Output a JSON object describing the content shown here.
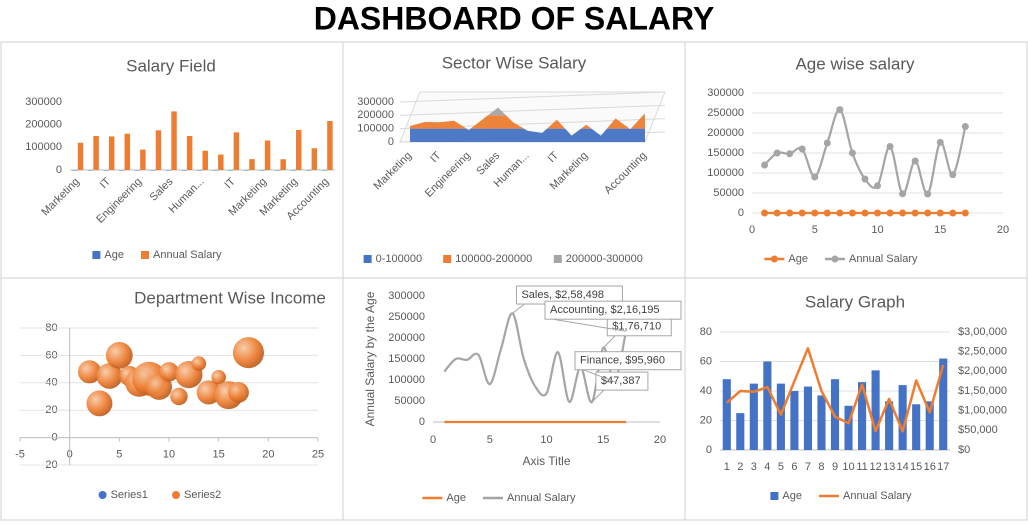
{
  "title": "DASHBOARD OF SALARY",
  "chart_data": [
    {
      "type": "bar",
      "title": "Salary Field",
      "categories": [
        "Marketing",
        null,
        "IT",
        null,
        "Engineering",
        null,
        "Sales",
        null,
        "Human...",
        null,
        "IT",
        null,
        "Marketing",
        null,
        "Marketing",
        null,
        "Accounting"
      ],
      "series": [
        {
          "name": "Age",
          "color": "#4472c4",
          "values": [
            48,
            25,
            45,
            60,
            45,
            40,
            43,
            37,
            48,
            30,
            46,
            54,
            33,
            44,
            31,
            33,
            62
          ]
        },
        {
          "name": "Annual Salary",
          "color": "#ed7d31",
          "values": [
            120000,
            150000,
            148000,
            160000,
            90000,
            175000,
            258498,
            150000,
            85000,
            68000,
            166200,
            48000,
            130000,
            47387,
            176710,
            95960,
            216195
          ]
        }
      ],
      "ylim": [
        0,
        300000
      ],
      "yticks": [
        0,
        100000,
        200000,
        300000
      ],
      "legend": "bottom"
    },
    {
      "type": "surface",
      "title": "Sector Wise Salary",
      "categories": [
        "Marketing",
        null,
        "IT",
        null,
        "Engineering",
        null,
        "Sales",
        null,
        "Human...",
        null,
        "IT",
        null,
        "Marketing",
        null,
        null,
        null,
        "Accounting"
      ],
      "values": [
        120000,
        150000,
        148000,
        160000,
        90000,
        175000,
        258498,
        150000,
        85000,
        68000,
        166200,
        48000,
        130000,
        47387,
        176710,
        95960,
        216195
      ],
      "ylim": [
        0,
        300000
      ],
      "yticks": [
        0,
        100000,
        200000,
        300000
      ],
      "bands": [
        {
          "name": "0-100000",
          "color": "#4472c4"
        },
        {
          "name": "100000-200000",
          "color": "#ed7d31"
        },
        {
          "name": "200000-300000",
          "color": "#a5a5a5"
        }
      ],
      "legend": "bottom"
    },
    {
      "type": "scatter",
      "title": "Age wise salary",
      "x": [
        1,
        2,
        3,
        4,
        5,
        6,
        7,
        8,
        9,
        10,
        11,
        12,
        13,
        14,
        15,
        16,
        17
      ],
      "series": [
        {
          "name": "Age",
          "color": "#ed7d31",
          "values": [
            48,
            25,
            45,
            60,
            45,
            40,
            43,
            37,
            48,
            30,
            46,
            54,
            33,
            44,
            31,
            33,
            62
          ]
        },
        {
          "name": "Annual Salary",
          "color": "#a5a5a5",
          "values": [
            120000,
            150000,
            148000,
            160000,
            90000,
            175000,
            258498,
            150000,
            85000,
            68000,
            166200,
            48000,
            130000,
            47387,
            176710,
            95960,
            216195
          ]
        }
      ],
      "xlim": [
        0,
        20
      ],
      "xticks": [
        0,
        5,
        10,
        15,
        20
      ],
      "ylim": [
        0,
        300000
      ],
      "yticks": [
        0,
        50000,
        100000,
        150000,
        200000,
        250000,
        300000
      ],
      "smooth": true,
      "grid": true,
      "legend": "bottom"
    },
    {
      "type": "bubble",
      "title": "Department Wise Income",
      "series": [
        {
          "name": "Series1",
          "color": "#4472c4"
        },
        {
          "name": "Series2",
          "color": "#ed7d31",
          "x": [
            2,
            3,
            4,
            5,
            6,
            7,
            8,
            9,
            10,
            11,
            12,
            13,
            14,
            15,
            16,
            17,
            18
          ],
          "values": [
            48,
            25,
            45,
            60,
            45,
            40,
            43,
            37,
            48,
            30,
            46,
            54,
            33,
            44,
            31,
            33,
            62
          ],
          "sizes": [
            120000,
            150000,
            148000,
            160000,
            90000,
            175000,
            258498,
            150000,
            85000,
            68000,
            166200,
            48000,
            130000,
            47387,
            176710,
            95960,
            216195
          ]
        }
      ],
      "xlim": [
        -5,
        25
      ],
      "xticks": [
        -5,
        0,
        5,
        10,
        15,
        20,
        25
      ],
      "ylim": [
        -20,
        80
      ],
      "yticks": [
        -20,
        0,
        20,
        40,
        60,
        80
      ],
      "grid": true,
      "legend": "bottom"
    },
    {
      "type": "line",
      "xlabel": "Axis Title",
      "ylabel": "Annual Salary by the Age",
      "x": [
        1,
        2,
        3,
        4,
        5,
        6,
        7,
        8,
        9,
        10,
        11,
        12,
        13,
        14,
        15,
        16,
        17
      ],
      "series": [
        {
          "name": "Age",
          "color": "#ed7d31",
          "values": [
            48,
            25,
            45,
            60,
            45,
            40,
            43,
            37,
            48,
            30,
            46,
            54,
            33,
            44,
            31,
            33,
            62
          ]
        },
        {
          "name": "Annual Salary",
          "color": "#a5a5a5",
          "values": [
            120000,
            150000,
            148000,
            160000,
            90000,
            175000,
            258498,
            150000,
            85000,
            68000,
            166200,
            48000,
            130000,
            47387,
            176710,
            95960,
            216195
          ],
          "value_labels": [
            null,
            null,
            null,
            null,
            null,
            null,
            "Sales, $2,58,498",
            null,
            null,
            null,
            null,
            null,
            null,
            "$47,387",
            "$1,76,710",
            "Finance, $95,960",
            "Accounting, $2,16,195"
          ]
        }
      ],
      "xlim": [
        0,
        20
      ],
      "xticks": [
        0,
        5,
        10,
        15,
        20
      ],
      "ylim": [
        0,
        300000
      ],
      "yticks": [
        0,
        50000,
        100000,
        150000,
        200000,
        250000,
        300000
      ],
      "smooth": true,
      "legend": "bottom"
    },
    {
      "type": "combo",
      "title": "Salary Graph",
      "categories": [
        1,
        2,
        3,
        4,
        5,
        6,
        7,
        8,
        9,
        10,
        11,
        12,
        13,
        14,
        15,
        16,
        17
      ],
      "series": [
        {
          "name": "Age",
          "type": "bar",
          "color": "#4472c4",
          "values": [
            48,
            25,
            45,
            60,
            45,
            40,
            43,
            37,
            48,
            30,
            46,
            54,
            33,
            44,
            31,
            33,
            62
          ]
        },
        {
          "name": "Annual Salary",
          "type": "line",
          "axis": "y2",
          "color": "#ed7d31",
          "values": [
            120000,
            150000,
            148000,
            160000,
            90000,
            175000,
            258498,
            150000,
            85000,
            68000,
            166200,
            48000,
            130000,
            47387,
            176710,
            95960,
            216195
          ]
        }
      ],
      "ylim": [
        0,
        80
      ],
      "yticks": [
        0,
        20,
        40,
        60,
        80
      ],
      "y2lim": [
        0,
        300000
      ],
      "y2ticks": [
        {
          "value": 0,
          "label": "$0"
        },
        {
          "value": 50000,
          "label": "$50,000"
        },
        {
          "value": 100000,
          "label": "$1,00,000"
        },
        {
          "value": 150000,
          "label": "$1,50,000"
        },
        {
          "value": 200000,
          "label": "$2,00,000"
        },
        {
          "value": 250000,
          "label": "$2,50,000"
        },
        {
          "value": 300000,
          "label": "$3,00,000"
        }
      ],
      "grid": true,
      "legend": "bottom"
    }
  ]
}
